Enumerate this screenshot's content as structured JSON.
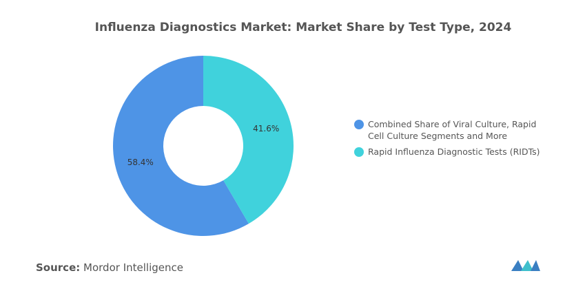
{
  "chart_data": {
    "type": "donut",
    "title": "Influenza Diagnostics Market: Market Share by Test Type, 2024",
    "categories": [
      "Combined Share of Viral Culture, Rapid Cell Culture Segments and More",
      "Rapid Influenza Diagnostic Tests (RIDTs)"
    ],
    "values": [
      58.4,
      41.6
    ],
    "value_labels": [
      "58.4%",
      "41.6%"
    ],
    "colors": [
      "#4e94e6",
      "#40d2dc"
    ],
    "legend": "right"
  },
  "footer": {
    "source_label": "Source:",
    "source": "Mordor Intelligence"
  }
}
